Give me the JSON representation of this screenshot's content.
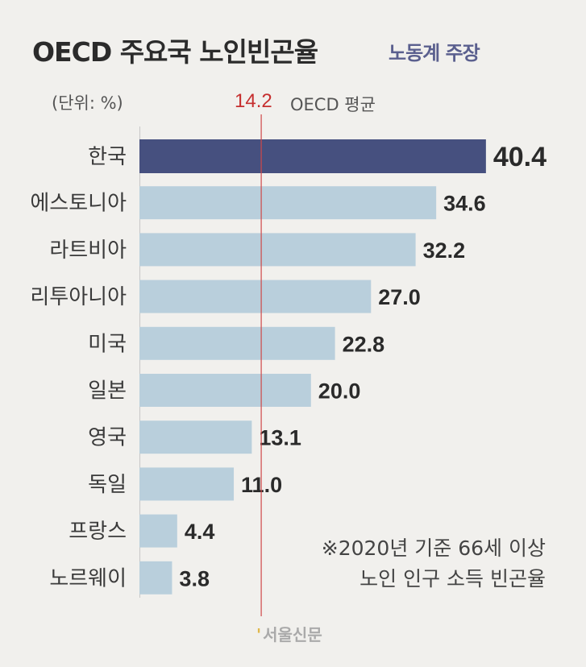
{
  "header": {
    "title": "OECD 주요국 노인빈곤율",
    "subtitle": "노동계 주장",
    "unit": "(단위: %)"
  },
  "average": {
    "value_label": "14.2",
    "label": "OECD 평균"
  },
  "note": {
    "line1": "※2020년 기준 66세 이상",
    "line2": "노인 인구 소득 빈곤율"
  },
  "credit": "서울신문",
  "colors": {
    "highlight": "#46507f",
    "bar": "#b9cfdc",
    "average_line": "#d04848"
  },
  "chart_data": {
    "type": "bar",
    "orientation": "horizontal",
    "title": "OECD 주요국 노인빈곤율",
    "subtitle": "노동계 주장",
    "unit": "%",
    "categories": [
      "한국",
      "에스토니아",
      "라트비아",
      "리투아니아",
      "미국",
      "일본",
      "영국",
      "독일",
      "프랑스",
      "노르웨이"
    ],
    "values": [
      40.4,
      34.6,
      32.2,
      27.0,
      22.8,
      20.0,
      13.1,
      11.0,
      4.4,
      3.8
    ],
    "value_labels": [
      "40.4",
      "34.6",
      "32.2",
      "27.0",
      "22.8",
      "20.0",
      "13.1",
      "11.0",
      "4.4",
      "3.8"
    ],
    "highlight_index": 0,
    "reference_line": {
      "value": 14.2,
      "label": "OECD 평균"
    },
    "xlim": [
      0,
      40.4
    ]
  }
}
